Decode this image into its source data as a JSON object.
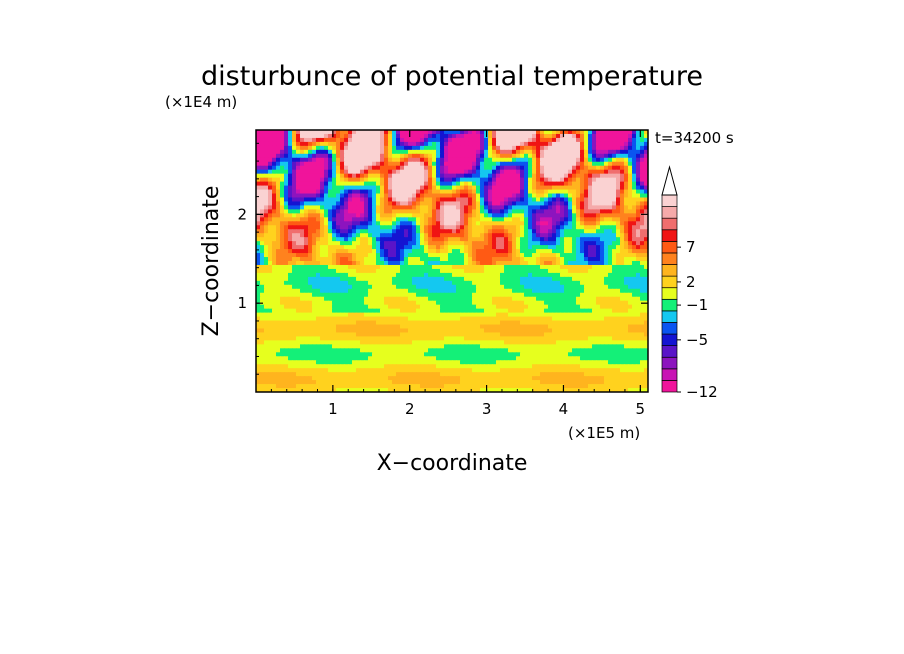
{
  "chart_data": {
    "type": "heatmap",
    "title": "disturbunce of potential temperature",
    "time_label": "t=34200 s",
    "xlabel": "X−coordinate",
    "ylabel": "Z−coordinate",
    "x_unit_label": "(×1E5 m)",
    "y_unit_label": "(×1E4 m)",
    "xlim": [
      0,
      5.1
    ],
    "ylim": [
      0,
      2.95
    ],
    "x_ticks": [
      "1",
      "2",
      "3",
      "4",
      "5"
    ],
    "y_ticks": [
      "1",
      "2"
    ],
    "colorbar": {
      "colors": [
        "#f0149b",
        "#c814b4",
        "#8c14be",
        "#5a14c8",
        "#1414d2",
        "#0a55f0",
        "#14c8f0",
        "#14f078",
        "#e6ff1e",
        "#ffd21e",
        "#ffb41e",
        "#ff821e",
        "#ff5a14",
        "#f01414",
        "#f06e6e",
        "#f5aaaa",
        "#fad2d2"
      ],
      "labels": [
        {
          "text": "7",
          "pos": 12.5
        },
        {
          "text": "2",
          "pos": 9.5
        },
        {
          "text": "−1",
          "pos": 7.5
        },
        {
          "text": "−5",
          "pos": 4.5
        },
        {
          "text": "−12",
          "pos": 0
        }
      ],
      "extend": "max"
    }
  }
}
